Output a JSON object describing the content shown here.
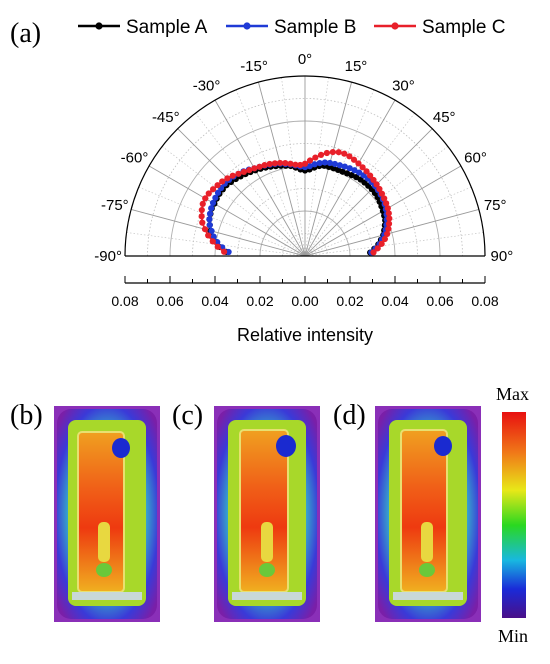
{
  "panels": {
    "a": "(a)",
    "b": "(b)",
    "c": "(c)",
    "d": "(d)"
  },
  "colorbar": {
    "max_label": "Max",
    "min_label": "Min"
  },
  "chart_data": {
    "type": "polar-line",
    "xlabel": "Relative intensity",
    "angle_ticks": [
      "-90°",
      "-75°",
      "-60°",
      "-45°",
      "-30°",
      "-15°",
      "0°",
      "15°",
      "30°",
      "45°",
      "60°",
      "75°",
      "90°"
    ],
    "angle_values": [
      -90,
      -75,
      -60,
      -45,
      -30,
      -15,
      0,
      15,
      30,
      45,
      60,
      75,
      90
    ],
    "radial_ticks": [
      "0.08",
      "0.06",
      "0.04",
      "0.02",
      "0.00",
      "0.02",
      "0.04",
      "0.06",
      "0.08"
    ],
    "rlim": [
      0,
      0.08
    ],
    "legend_position": "top",
    "angles": [
      -87,
      -84,
      -81,
      -78,
      -75,
      -72,
      -69,
      -66,
      -63,
      -60,
      -57,
      -54,
      -51,
      -48,
      -45,
      -42,
      -39,
      -36,
      -33,
      -30,
      -27,
      -24,
      -21,
      -18,
      -15,
      -12,
      -9,
      -6,
      -3,
      0,
      3,
      6,
      9,
      12,
      15,
      18,
      21,
      24,
      27,
      30,
      33,
      36,
      39,
      42,
      45,
      48,
      51,
      54,
      57,
      60,
      63,
      66,
      69,
      72,
      75,
      78,
      81,
      84,
      87
    ],
    "series": [
      {
        "name": "Sample A",
        "color": "#000000",
        "values": [
          0.035,
          0.038,
          0.04,
          0.042,
          0.0435,
          0.0445,
          0.0455,
          0.046,
          0.0465,
          0.0465,
          0.0468,
          0.047,
          0.047,
          0.047,
          0.0465,
          0.046,
          0.0455,
          0.045,
          0.0445,
          0.044,
          0.0435,
          0.043,
          0.0425,
          0.042,
          0.0415,
          0.041,
          0.0405,
          0.0395,
          0.0385,
          0.038,
          0.0385,
          0.0395,
          0.0405,
          0.041,
          0.041,
          0.041,
          0.041,
          0.041,
          0.0412,
          0.0415,
          0.0418,
          0.042,
          0.042,
          0.042,
          0.042,
          0.0418,
          0.0415,
          0.041,
          0.0405,
          0.04,
          0.0395,
          0.039,
          0.038,
          0.037,
          0.036,
          0.0345,
          0.033,
          0.031,
          0.029
        ]
      },
      {
        "name": "Sample B",
        "color": "#1f3ad6",
        "values": [
          0.034,
          0.037,
          0.0395,
          0.0415,
          0.043,
          0.0445,
          0.0455,
          0.0462,
          0.0468,
          0.0472,
          0.0475,
          0.0478,
          0.048,
          0.048,
          0.0478,
          0.0475,
          0.047,
          0.0465,
          0.0458,
          0.045,
          0.0445,
          0.044,
          0.0435,
          0.043,
          0.0425,
          0.0418,
          0.0412,
          0.0405,
          0.0398,
          0.0395,
          0.04,
          0.041,
          0.0418,
          0.0425,
          0.0428,
          0.043,
          0.0432,
          0.0435,
          0.0438,
          0.044,
          0.0442,
          0.0443,
          0.0443,
          0.0442,
          0.044,
          0.0437,
          0.0433,
          0.0428,
          0.0422,
          0.0415,
          0.0407,
          0.0398,
          0.0388,
          0.0377,
          0.0365,
          0.035,
          0.0335,
          0.0315,
          0.0295
        ]
      },
      {
        "name": "Sample C",
        "color": "#e8202a",
        "values": [
          0.036,
          0.039,
          0.0415,
          0.044,
          0.046,
          0.048,
          0.0492,
          0.0502,
          0.051,
          0.0512,
          0.051,
          0.0505,
          0.05,
          0.0495,
          0.0488,
          0.048,
          0.047,
          0.0462,
          0.0455,
          0.045,
          0.0445,
          0.0442,
          0.0438,
          0.0433,
          0.0428,
          0.0422,
          0.0415,
          0.0408,
          0.0405,
          0.041,
          0.0425,
          0.044,
          0.0455,
          0.0468,
          0.0478,
          0.0485,
          0.0487,
          0.0485,
          0.048,
          0.0475,
          0.047,
          0.0465,
          0.046,
          0.0455,
          0.045,
          0.0445,
          0.044,
          0.0435,
          0.043,
          0.0425,
          0.0418,
          0.041,
          0.04,
          0.039,
          0.0378,
          0.0363,
          0.0345,
          0.0325,
          0.0305
        ]
      }
    ]
  }
}
